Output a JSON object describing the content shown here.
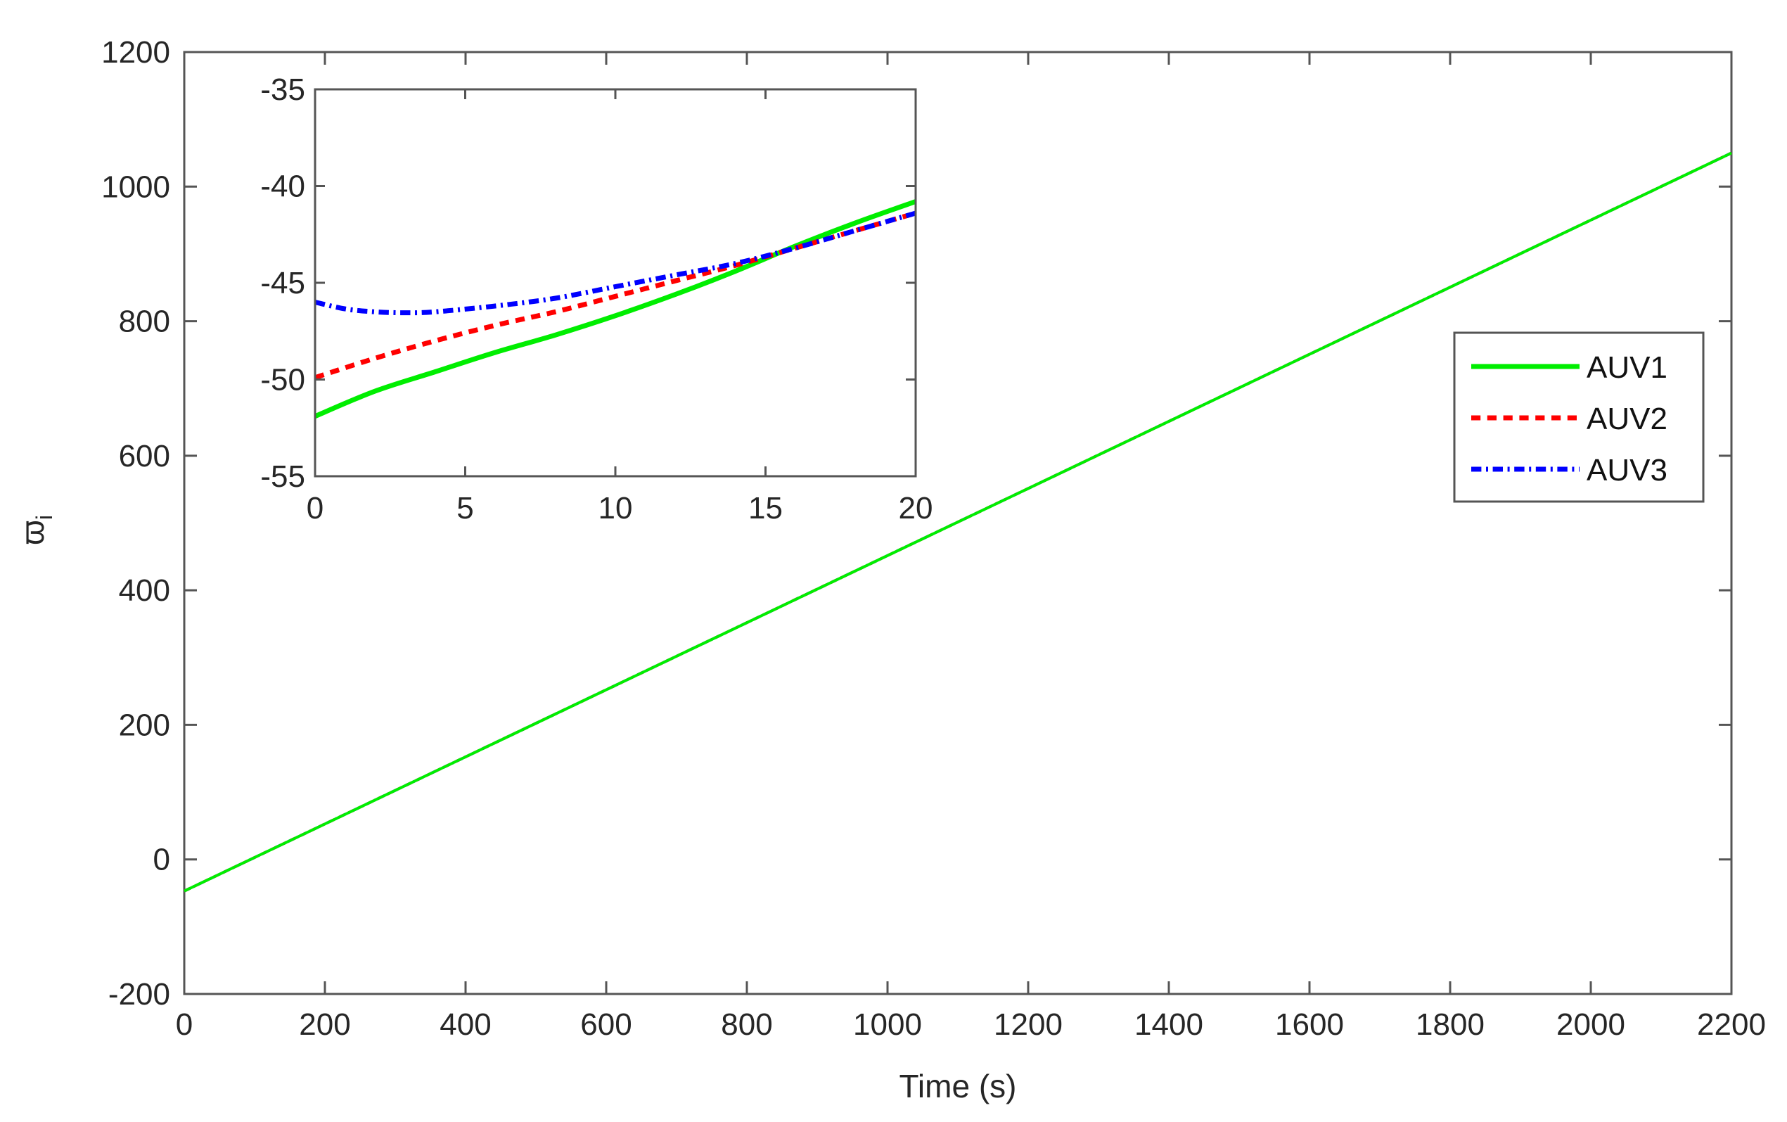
{
  "chart_data": [
    {
      "type": "line",
      "xlabel": "Time (s)",
      "ylabel": "ϖ",
      "ylabel_subscript": "i",
      "xlim": [
        0,
        2200
      ],
      "ylim": [
        -200,
        1200
      ],
      "xticks": [
        "0",
        "200",
        "400",
        "600",
        "800",
        "1000",
        "1200",
        "1400",
        "1600",
        "1800",
        "2000",
        "2200"
      ],
      "yticks": [
        "-200",
        "0",
        "200",
        "400",
        "600",
        "800",
        "1000",
        "1200"
      ],
      "grid": false,
      "legend_position": "right",
      "series": [
        {
          "name": "AUV1",
          "color": "#00ee00",
          "dash": "solid",
          "x": [
            0,
            2200
          ],
          "y": [
            -47,
            1050
          ]
        },
        {
          "name": "AUV2",
          "color": "#ff0000",
          "dash": "dashed",
          "x": [
            0,
            2200
          ],
          "y": [
            -47,
            1050
          ]
        },
        {
          "name": "AUV3",
          "color": "#0000ff",
          "dash": "dashdot",
          "x": [
            0,
            2200
          ],
          "y": [
            -47,
            1050
          ]
        }
      ]
    },
    {
      "type": "line",
      "inset": true,
      "xlim": [
        0,
        20
      ],
      "ylim": [
        -55,
        -35
      ],
      "xticks": [
        "0",
        "5",
        "10",
        "15",
        "20"
      ],
      "yticks": [
        "-55",
        "-50",
        "-45",
        "-40",
        "-35"
      ],
      "grid": false,
      "series": [
        {
          "name": "AUV1",
          "color": "#00ee00",
          "dash": "solid",
          "x": [
            0,
            2,
            4,
            6,
            8,
            10,
            12,
            14,
            16,
            18,
            20
          ],
          "y": [
            -51.9,
            -50.6,
            -49.6,
            -48.6,
            -47.7,
            -46.7,
            -45.6,
            -44.4,
            -43.1,
            -41.9,
            -40.8
          ]
        },
        {
          "name": "AUV2",
          "color": "#ff0000",
          "dash": "dashed",
          "x": [
            0,
            2,
            4,
            6,
            8,
            10,
            12,
            14,
            16,
            18,
            20
          ],
          "y": [
            -49.9,
            -48.9,
            -48.0,
            -47.2,
            -46.5,
            -45.7,
            -44.9,
            -44.1,
            -43.2,
            -42.3,
            -41.4
          ]
        },
        {
          "name": "AUV3",
          "color": "#0000ff",
          "dash": "dashdot",
          "x": [
            0,
            1,
            2,
            3,
            4,
            6,
            8,
            10,
            12,
            14,
            16,
            18,
            20
          ],
          "y": [
            -46.0,
            -46.35,
            -46.5,
            -46.55,
            -46.5,
            -46.2,
            -45.8,
            -45.2,
            -44.6,
            -44.0,
            -43.2,
            -42.3,
            -41.4
          ]
        }
      ]
    }
  ]
}
